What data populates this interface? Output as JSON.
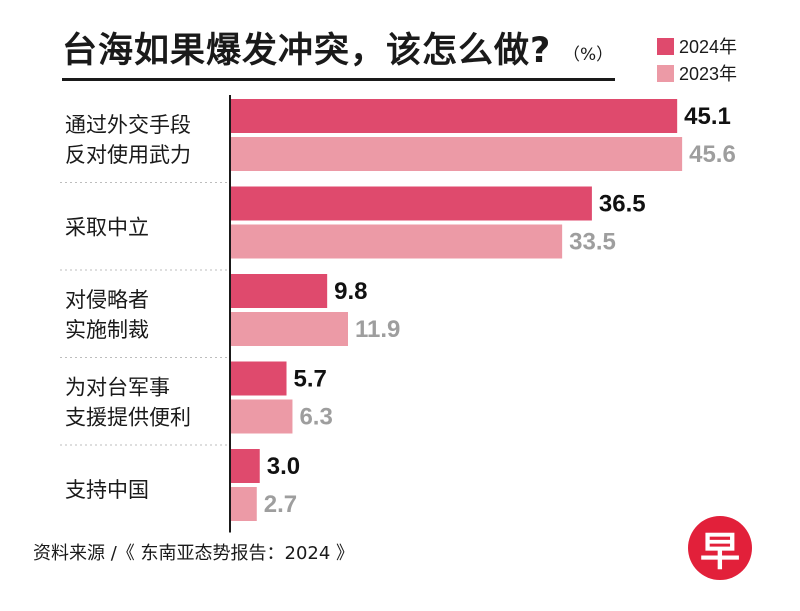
{
  "title": "台海如果爆发冲突，该怎么做?",
  "unit": "（%）",
  "footer": "资料来源 /《 东南亚态势报告：2024 》",
  "logo": "早",
  "colors": {
    "series_2024": "#df4a6d",
    "series_2023": "#ec9aa6",
    "label_2024": "#111111",
    "label_2023": "#9e9e9e",
    "background": "#ffffff",
    "axis": "#1a1a1a",
    "logo": "#e2203a"
  },
  "chart_data": {
    "type": "bar",
    "orientation": "horizontal",
    "title": "台海如果爆发冲突，该怎么做?",
    "unit": "%",
    "categories": [
      [
        "通过外交手段",
        "反对使用武力"
      ],
      [
        "采取中立"
      ],
      [
        "对侵略者",
        "实施制裁"
      ],
      [
        "为对台军事",
        "支援提供便利"
      ],
      [
        "支持中国"
      ]
    ],
    "series": [
      {
        "name": "2024年",
        "values": [
          45.1,
          36.5,
          9.8,
          5.7,
          3.0
        ],
        "labels": [
          "45.1",
          "36.5",
          "9.8",
          "5.7",
          "3.0"
        ]
      },
      {
        "name": "2023年",
        "values": [
          45.6,
          33.5,
          11.9,
          6.3,
          2.7
        ],
        "labels": [
          "45.6",
          "33.5",
          "11.9",
          "6.3",
          "2.7"
        ]
      }
    ],
    "xlim": [
      0,
      50
    ],
    "legend": "top-right",
    "grid": false
  }
}
